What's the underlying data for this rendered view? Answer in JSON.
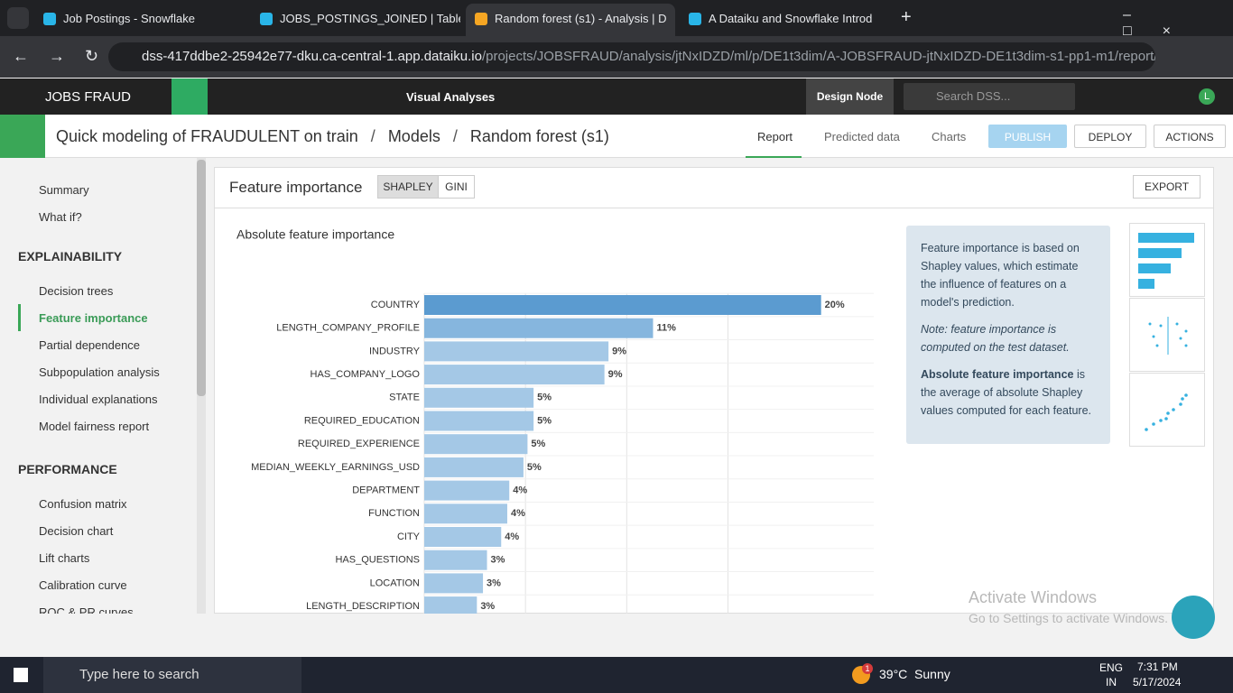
{
  "browser": {
    "tabs": [
      "Job Postings - Snowflake",
      "JOBS_POSTINGS_JOINED | Table",
      "Random forest (s1) - Analysis | D",
      "A Dataiku and Snowflake Introd"
    ],
    "url_host": "dss-417ddbe2-25942e77-dku.ca-central-1.app.dataiku.io",
    "url_path": "/projects/JOBSFRAUD/analysis/jtNxIDZD/ml/p/DE1t3dim/A-JOBSFRAUD-jtNxIDZD-DE1t3dim-s1-pp1-m1/report/tabul..."
  },
  "app": {
    "project": "JOBS FRAUD",
    "section": "Visual Analyses",
    "node": "Design Node",
    "search": "Search DSS...",
    "avatar": "L"
  },
  "breadcrumb": {
    "items": [
      "Quick modeling of FRAUDULENT on train",
      "Models",
      "Random forest (s1)"
    ],
    "tabs": [
      "Report",
      "Predicted data",
      "Charts"
    ],
    "buttons": [
      "PUBLISH",
      "DEPLOY",
      "ACTIONS"
    ]
  },
  "sidebar": {
    "top": [
      "Summary",
      "What if?"
    ],
    "sections": [
      {
        "title": "EXPLAINABILITY",
        "items": [
          "Decision trees",
          "Feature importance",
          "Partial dependence",
          "Subpopulation analysis",
          "Individual explanations",
          "Model fairness report"
        ]
      },
      {
        "title": "PERFORMANCE",
        "items": [
          "Confusion matrix",
          "Decision chart",
          "Lift charts",
          "Calibration curve",
          "ROC & PR curves"
        ]
      }
    ]
  },
  "panel": {
    "title": "Feature importance",
    "toggle": [
      "SHAPLEY",
      "GINI"
    ],
    "export": "EXPORT"
  },
  "chart_data": {
    "type": "bar",
    "orientation": "horizontal",
    "title": "Absolute feature importance",
    "categories": [
      "COUNTRY",
      "LENGTH_COMPANY_PROFILE",
      "INDUSTRY",
      "HAS_COMPANY_LOGO",
      "STATE",
      "REQUIRED_EDUCATION",
      "REQUIRED_EXPERIENCE",
      "MEDIAN_WEEKLY_EARNINGS_USD",
      "DEPARTMENT",
      "FUNCTION",
      "CITY",
      "HAS_QUESTIONS",
      "LOCATION",
      "LENGTH_DESCRIPTION"
    ],
    "values": [
      19.6,
      11.3,
      9.1,
      8.9,
      5.4,
      5.4,
      5.1,
      4.9,
      4.2,
      4.1,
      3.8,
      3.1,
      2.9,
      2.6
    ],
    "value_labels": [
      "20%",
      "11%",
      "9%",
      "9%",
      "5%",
      "5%",
      "5%",
      "5%",
      "4%",
      "4%",
      "4%",
      "3%",
      "3%",
      "3%"
    ],
    "color": "#a4c8e6",
    "highlight_color": "#5b9bd0",
    "second_color": "#86b6de",
    "xlim": [
      0,
      22.2
    ],
    "xticks": [
      5,
      10,
      15
    ],
    "grid": true
  },
  "info": {
    "p1": "Feature importance is based on Shapley values, which estimate the influence of features on a model's prediction.",
    "note": "Note: feature importance is computed on the test dataset.",
    "bold": "Absolute feature importance",
    "rest": " is the average of absolute Shapley values computed for each feature."
  },
  "watermark": [
    "Activate Windows",
    "Go to Settings to activate Windows."
  ],
  "taskbar": {
    "search": "Type here to search",
    "badge": "1",
    "weather": "39°C  Sunny",
    "lang": [
      "ENG",
      "IN"
    ],
    "time": "7:31 PM",
    "date": "5/17/2024"
  }
}
